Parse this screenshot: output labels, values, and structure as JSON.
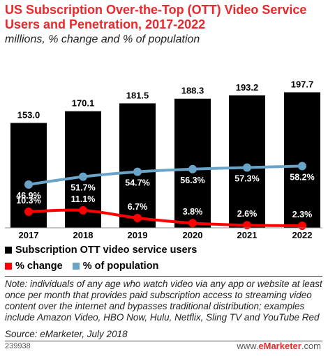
{
  "title": "US Subscription Over-the-Top (OTT) Video Service Users and Penetration, 2017-2022",
  "subtitle": "millions, % change and % of population",
  "legend": {
    "users": "Subscription OTT video service users",
    "change": "% change",
    "population": "% of population"
  },
  "note": "Note: individuals of any age who watch video via any app or website at least once per month that provides paid subscription access to streaming video content over the internet and bypasses traditional distribution; examples include Amazon Video, HBO Now, Hulu, Netflix, Sling TV and YouTube Red",
  "source": "Source: eMarketer, July 2018",
  "footer_id": "239938",
  "brand": {
    "prefix": "www.",
    "name": "eMarketer",
    "suffix": ".com"
  },
  "colors": {
    "bars": "#000000",
    "change": "#ff0000",
    "population": "#6aa3c8",
    "title": "#e8282b"
  },
  "chart_data": {
    "type": "bar",
    "categories": [
      "2017",
      "2018",
      "2019",
      "2020",
      "2021",
      "2022"
    ],
    "bar_labels": [
      "153.0",
      "170.1",
      "181.5",
      "188.3",
      "193.2",
      "197.7"
    ],
    "series": [
      {
        "name": "Subscription OTT video service users",
        "type": "bar",
        "values": [
          153.0,
          170.1,
          181.5,
          188.3,
          193.2,
          197.7
        ],
        "color": "#000000"
      },
      {
        "name": "% change",
        "type": "line",
        "values": [
          10.3,
          11.1,
          6.7,
          3.8,
          2.6,
          2.3
        ],
        "labels": [
          "10.3%",
          "11.1%",
          "6.7%",
          "3.8%",
          "2.6%",
          "2.3%"
        ],
        "color": "#ff0000"
      },
      {
        "name": "% of population",
        "type": "line",
        "values": [
          46.9,
          51.7,
          54.7,
          56.3,
          57.3,
          58.2
        ],
        "labels": [
          "46.9%",
          "51.7%",
          "54.7%",
          "56.3%",
          "57.3%",
          "58.2%"
        ],
        "color": "#6aa3c8"
      }
    ],
    "ylim": [
      0,
      200
    ],
    "grid": false,
    "legend_position": "bottom-left"
  }
}
